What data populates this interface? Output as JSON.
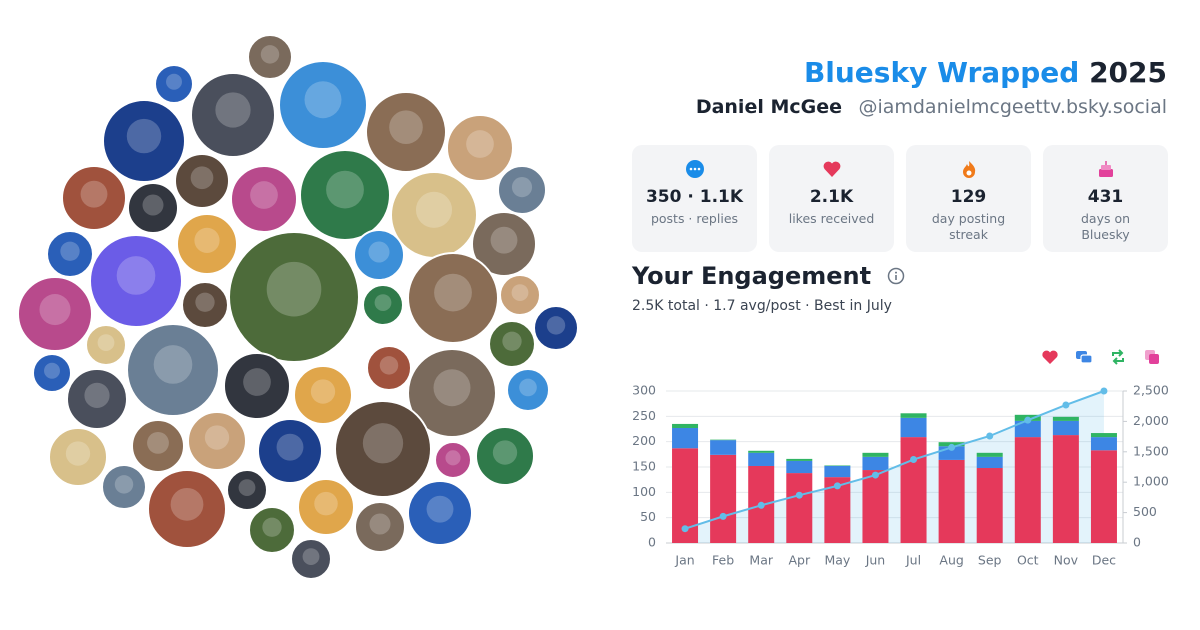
{
  "header": {
    "title": "Bluesky Wrapped",
    "year": "2025",
    "name": "Daniel McGee",
    "handle": "@iamdanielmcgeettv.bsky.social"
  },
  "stats": [
    {
      "value": "350 · 1.1K",
      "label": "posts · replies"
    },
    {
      "value": "2.1K",
      "label": "likes received"
    },
    {
      "value": 129,
      "label": "day posting streak"
    },
    {
      "value": 431,
      "label": "days on Bluesky"
    }
  ],
  "engagement": {
    "title": "Your Engagement",
    "summary": "2.5K total · 1.7 avg/post · Best in July"
  },
  "chart_data": {
    "type": "stacked-bar-line",
    "categories": [
      "Jan",
      "Feb",
      "Mar",
      "Apr",
      "May",
      "Jun",
      "Jul",
      "Aug",
      "Sep",
      "Oct",
      "Nov",
      "Dec"
    ],
    "series": [
      {
        "color": "#e5395b",
        "values": [
          187,
          174,
          152,
          138,
          130,
          144,
          209,
          164,
          148,
          209,
          213,
          183
        ]
      },
      {
        "color": "#3d86e4",
        "values": [
          40,
          29,
          26,
          24,
          22,
          26,
          38,
          27,
          22,
          32,
          28,
          26
        ]
      },
      {
        "color": "#2fb463",
        "values": [
          8,
          1,
          4,
          4,
          1,
          8,
          9,
          8,
          8,
          12,
          8,
          8
        ]
      },
      {
        "color": "#e2419b",
        "values": [
          0,
          0,
          0,
          0,
          0,
          0,
          0,
          0,
          0,
          0,
          0,
          0
        ]
      },
      {
        "color": "#62bde8",
        "axis": "y2",
        "values": [
          235,
          438,
          620,
          786,
          939,
          1117,
          1373,
          1572,
          1760,
          2020,
          2270,
          2500
        ]
      }
    ],
    "ylim": [
      0,
      300
    ],
    "yticks": [
      0,
      50,
      100,
      150,
      200,
      250,
      300
    ],
    "y2lim": [
      0,
      2500
    ],
    "y2ticks": [
      0,
      500,
      {
        "value": 1000,
        "label": "1,000"
      },
      {
        "value": 1500,
        "label": "1,500"
      },
      {
        "value": 2000,
        "label": "2,000"
      },
      {
        "value": 2500,
        "label": "2,500"
      }
    ],
    "grid": true
  }
}
